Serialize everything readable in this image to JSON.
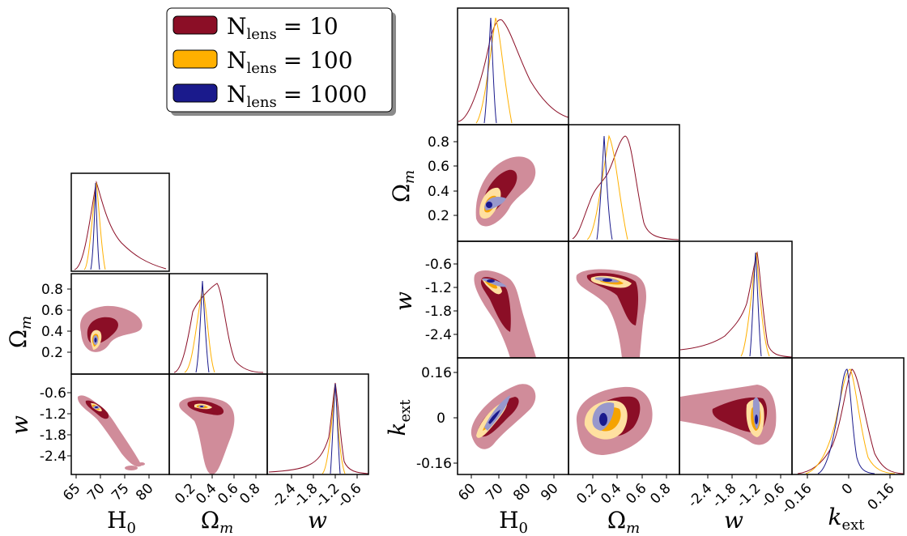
{
  "chart_data": [
    {
      "type": "corner",
      "name_note": "left corner plot",
      "parameters": [
        "H₀",
        "Ωₘ",
        "w"
      ],
      "axis_labels": [
        "H",
        "0",
        "Ω",
        "m",
        "w"
      ],
      "ranges": {
        "H0": [
          62,
          82
        ],
        "Om": [
          0.0,
          0.9
        ],
        "w": [
          -3.0,
          -0.3
        ]
      },
      "ticks": {
        "H0": {
          "values": [
            65,
            70,
            75,
            80
          ],
          "labels": [
            "65",
            "70",
            "75",
            "80"
          ]
        },
        "Om": {
          "values": [
            0.2,
            0.4,
            0.6,
            0.8
          ],
          "labels": [
            "0.2",
            "0.4",
            "0.6",
            "0.8"
          ]
        },
        "w": {
          "values": [
            -2.4,
            -1.8,
            -1.2,
            -0.6
          ],
          "labels": [
            "-2.4",
            "-1.8",
            "-1.2",
            "-0.6"
          ]
        }
      },
      "series": [
        {
          "label": "N_lens = 10",
          "color": "#8b0e26",
          "H0_peak": 68,
          "Om_peak": 0.45,
          "w_peak": -0.95
        },
        {
          "label": "N_lens = 100",
          "color": "#ffb000",
          "H0_peak": 68,
          "Om_peak": 0.33,
          "w_peak": -0.98
        },
        {
          "label": "N_lens = 1000",
          "color": "#1a1a8c",
          "H0_peak": 68,
          "Om_peak": 0.3,
          "w_peak": -1.0
        }
      ]
    },
    {
      "type": "corner",
      "name_note": "right corner plot",
      "parameters": [
        "H₀",
        "Ωₘ",
        "w",
        "k_ext"
      ],
      "axis_labels": [
        "H",
        "0",
        "Ω",
        "m",
        "w",
        "k",
        "ext"
      ],
      "ranges": {
        "H0": [
          55,
          95
        ],
        "Om": [
          0.0,
          0.9
        ],
        "w": [
          -3.2,
          -0.3
        ],
        "kext": [
          -0.22,
          0.22
        ]
      },
      "ticks": {
        "H0": {
          "values": [
            60,
            70,
            80,
            90
          ],
          "labels": [
            "60",
            "70",
            "80",
            "90"
          ]
        },
        "Om": {
          "values": [
            0.2,
            0.4,
            0.6,
            0.8
          ],
          "labels": [
            "0.2",
            "0.4",
            "0.6",
            "0.8"
          ]
        },
        "w": {
          "values": [
            -2.4,
            -1.8,
            -1.2,
            -0.6
          ],
          "labels": [
            "-2.4",
            "-1.8",
            "-1.2",
            "-0.6"
          ]
        },
        "kext": {
          "values": [
            -0.16,
            0,
            0.16
          ],
          "labels": [
            "-0.16",
            "0",
            "0.16"
          ]
        }
      },
      "series": [
        {
          "label": "N_lens = 10",
          "color": "#8b0e26",
          "H0_peak": 69,
          "Om_peak": 0.46,
          "w_peak": -0.95,
          "kext_peak": 0.01
        },
        {
          "label": "N_lens = 100",
          "color": "#ffb000",
          "H0_peak": 68,
          "Om_peak": 0.35,
          "w_peak": -0.97,
          "kext_peak": 0.005
        },
        {
          "label": "N_lens = 1000",
          "color": "#1a1a8c",
          "H0_peak": 67,
          "Om_peak": 0.29,
          "w_peak": -1.0,
          "kext_peak": -0.01
        }
      ]
    }
  ],
  "legend": {
    "placement": "top-center",
    "entries": [
      {
        "main": "N",
        "sub": "lens",
        "eq": "= 10",
        "color": "#8b0e26"
      },
      {
        "main": "N",
        "sub": "lens",
        "eq": "= 100",
        "color": "#ffb000"
      },
      {
        "main": "N",
        "sub": "lens",
        "eq": "= 1000",
        "color": "#1a1a8c"
      }
    ]
  },
  "colors": {
    "n10_dark": "#8b0e26",
    "n10_light": "#d08c9a",
    "n100_dark": "#f5a300",
    "n100_light": "#ffe0a0",
    "n1000_dark": "#1a1a8c",
    "n1000_light": "#9898cc"
  }
}
